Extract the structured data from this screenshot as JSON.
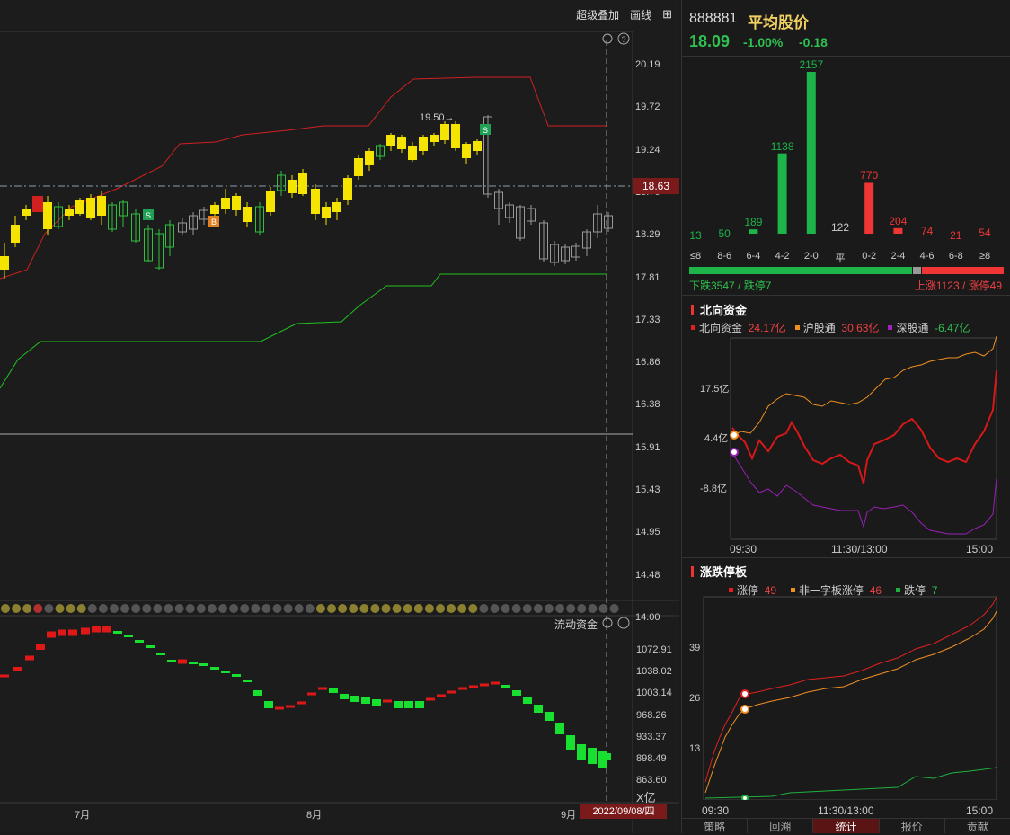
{
  "toolbar": {
    "overlay": "超级叠加",
    "draw": "画线"
  },
  "main_chart": {
    "price_axis": [
      "20.19",
      "19.72",
      "19.24",
      "18.76",
      "18.29",
      "17.81",
      "17.33",
      "16.86",
      "16.38",
      "15.91",
      "15.43",
      "14.95",
      "14.48",
      "14.00"
    ],
    "current_price": "18.63",
    "high_annotation": "19.50→",
    "flow_label": "流动资金",
    "flow_axis": [
      "1072.91",
      "1038.02",
      "1003.14",
      "968.26",
      "933.37",
      "898.49",
      "863.60"
    ],
    "flow_unit": "X亿",
    "x_labels": [
      "7月",
      "8月",
      "9月"
    ],
    "cursor_date": "2022/09/08/四"
  },
  "quote": {
    "code": "888881",
    "name": "平均股价",
    "price": "18.09",
    "change_pct": "-1.00%",
    "change": "-0.18"
  },
  "distribution": {
    "categories": [
      "≤8",
      "8-6",
      "6-4",
      "4-2",
      "2-0",
      "平",
      "0-2",
      "2-4",
      "4-6",
      "6-8",
      "≥8"
    ],
    "values": [
      13,
      50,
      189,
      1138,
      2157,
      122,
      770,
      204,
      74,
      21,
      54
    ],
    "colors": [
      "#1db44a",
      "#1db44a",
      "#1db44a",
      "#1db44a",
      "#1db44a",
      "#999999",
      "#f03535",
      "#f03535",
      "#f03535",
      "#f03535",
      "#f03535"
    ],
    "down_text": "下跌3547 / 跌停7",
    "up_text": "上涨1123 / 涨停49"
  },
  "north": {
    "title": "北向资金",
    "legend": [
      {
        "name": "北向资金",
        "value": "24.17亿",
        "color": "#e02020",
        "vcolor": "#f04040"
      },
      {
        "name": "沪股通",
        "value": "30.63亿",
        "color": "#f09020",
        "vcolor": "#f04040"
      },
      {
        "name": "深股通",
        "value": "-6.47亿",
        "color": "#a020c0",
        "vcolor": "#30c050"
      }
    ],
    "y_labels": [
      "17.5亿",
      "4.4亿",
      "-8.8亿"
    ],
    "x_labels": [
      "09:30",
      "11:30/13:00",
      "15:00"
    ]
  },
  "limit": {
    "title": "涨跌停板",
    "legend": [
      {
        "name": "涨停",
        "value": "49",
        "color": "#e02020",
        "vcolor": "#f04040"
      },
      {
        "name": "非一字板涨停",
        "value": "46",
        "color": "#f09020",
        "vcolor": "#f04040"
      },
      {
        "name": "跌停",
        "value": "7",
        "color": "#20b040",
        "vcolor": "#30c050"
      }
    ],
    "y_labels": [
      "39",
      "26",
      "13"
    ],
    "x_labels": [
      "09:30",
      "11:30/13:00",
      "15:00"
    ]
  },
  "tabs": [
    "策略",
    "回溯",
    "统计",
    "报价",
    "贡献"
  ],
  "active_tab": "统计"
}
